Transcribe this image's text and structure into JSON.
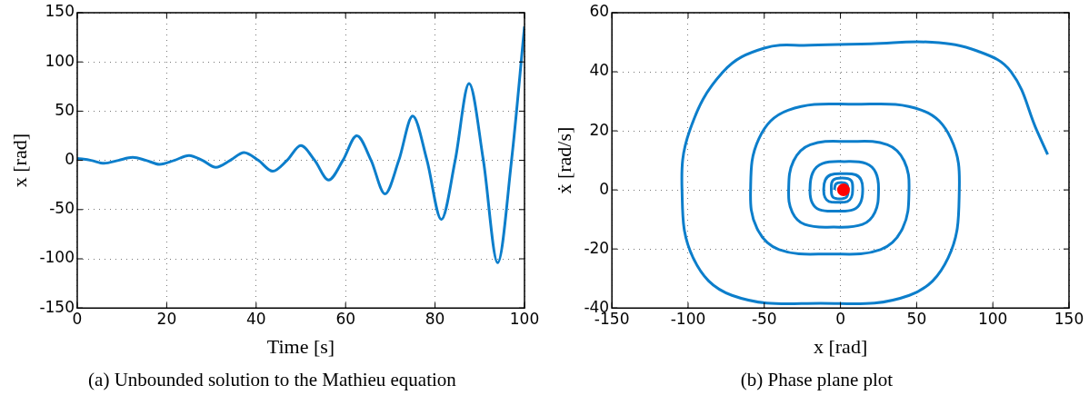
{
  "chart_data": [
    {
      "type": "line",
      "xlabel": "Time [s]",
      "ylabel": "x [rad]",
      "annotations": [
        "(a) Unbounded solution to the Mathieu equation"
      ],
      "xlim": [
        0,
        100
      ],
      "xticks": [
        0,
        20,
        40,
        60,
        80,
        100
      ],
      "ylim": [
        -150,
        150
      ],
      "yticks": [
        -150,
        -100,
        -50,
        0,
        50,
        100,
        150
      ],
      "grid": true,
      "marker": "none",
      "line_style": "solid",
      "series": [
        {
          "color": "#0c7ecb",
          "x": [
            0,
            3.1,
            6,
            9.2,
            12.4,
            15.4,
            18.4,
            21.7,
            25,
            28,
            31,
            34.2,
            37.3,
            40.5,
            43.7,
            46.9,
            50,
            53.1,
            56.2,
            59.4,
            62.5,
            65.7,
            68.8,
            71.9,
            75,
            78.2,
            81.4,
            84.5,
            87.6,
            90.8,
            94,
            97.1,
            100
          ],
          "values": [
            2,
            0,
            -3,
            0,
            3,
            0,
            -4,
            0,
            5,
            0,
            -7,
            0,
            8,
            0,
            -11,
            0,
            15,
            0,
            -20,
            0,
            25,
            0,
            -34,
            0,
            45,
            0,
            -60,
            0,
            78,
            0,
            -104,
            0,
            136
          ]
        }
      ]
    },
    {
      "type": "line",
      "xlabel": "x [rad]",
      "ylabel": "ẋ [rad/s]",
      "annotations": [
        "(b) Phase plane plot"
      ],
      "xlim": [
        -150,
        150
      ],
      "xticks": [
        -150,
        -100,
        -50,
        0,
        50,
        100,
        150
      ],
      "ylim": [
        -40,
        60
      ],
      "yticks": [
        -40,
        -20,
        0,
        20,
        40,
        60
      ],
      "grid": true,
      "marker": "none",
      "line_style": "solid",
      "series": [
        {
          "type": "line",
          "color": "#0c7ecb",
          "x": [
            -4,
            -3,
            0.5,
            4,
            5,
            4,
            -0.5,
            -5,
            -6,
            -5,
            1,
            7,
            8,
            7.2,
            4.6,
            -1.5,
            -7.6,
            -10.2,
            -11,
            -10,
            -6.4,
            1.8,
            10,
            13.6,
            14.6,
            13.2,
            8.4,
            -2.7,
            -13.8,
            -18.6,
            -20,
            -18.2,
            -11.9,
            2.5,
            16.9,
            23.2,
            25,
            22.6,
            14.4,
            -4.5,
            -23.4,
            -31.6,
            -34,
            -30.8,
            -19.8,
            5.5,
            30.8,
            41.8,
            45,
            40.8,
            26.3,
            -7,
            -40.3,
            -54.8,
            -59,
            -53.5,
            -34.3,
            9.5,
            53.3,
            72.5,
            78,
            70.7,
            45.2,
            -13,
            -71.2,
            -96.7,
            -104,
            -99,
            -77,
            -50,
            -20,
            20,
            60,
            90,
            112,
            129,
            136
          ],
          "values": [
            0,
            2,
            2.5,
            2,
            0,
            -2.4,
            -3,
            -2.4,
            0,
            3.2,
            4,
            3.2,
            0,
            -2.5,
            -3.9,
            -4.2,
            -3.9,
            -2.5,
            0,
            3.3,
            5.1,
            5.5,
            5.1,
            3.3,
            0,
            -4.3,
            -6.7,
            -7.2,
            -6.7,
            -4.3,
            0,
            5.8,
            8.9,
            9.6,
            8.9,
            5.8,
            0,
            -7.6,
            -11.7,
            -12.6,
            -11.7,
            -7.6,
            0,
            9.8,
            15.3,
            16.4,
            15.3,
            9.8,
            0,
            -13,
            -20.2,
            -21.7,
            -20.2,
            -13,
            0,
            17.4,
            27,
            29,
            27,
            17.4,
            0,
            -23,
            -35.7,
            -38.4,
            -35.7,
            -23,
            0,
            20,
            40,
            48,
            49,
            49.5,
            50,
            47,
            40,
            20,
            12
          ]
        },
        {
          "type": "scatter",
          "color": "#ff0000",
          "marker": "circle",
          "x": [
            2
          ],
          "values": [
            0
          ]
        }
      ]
    }
  ]
}
